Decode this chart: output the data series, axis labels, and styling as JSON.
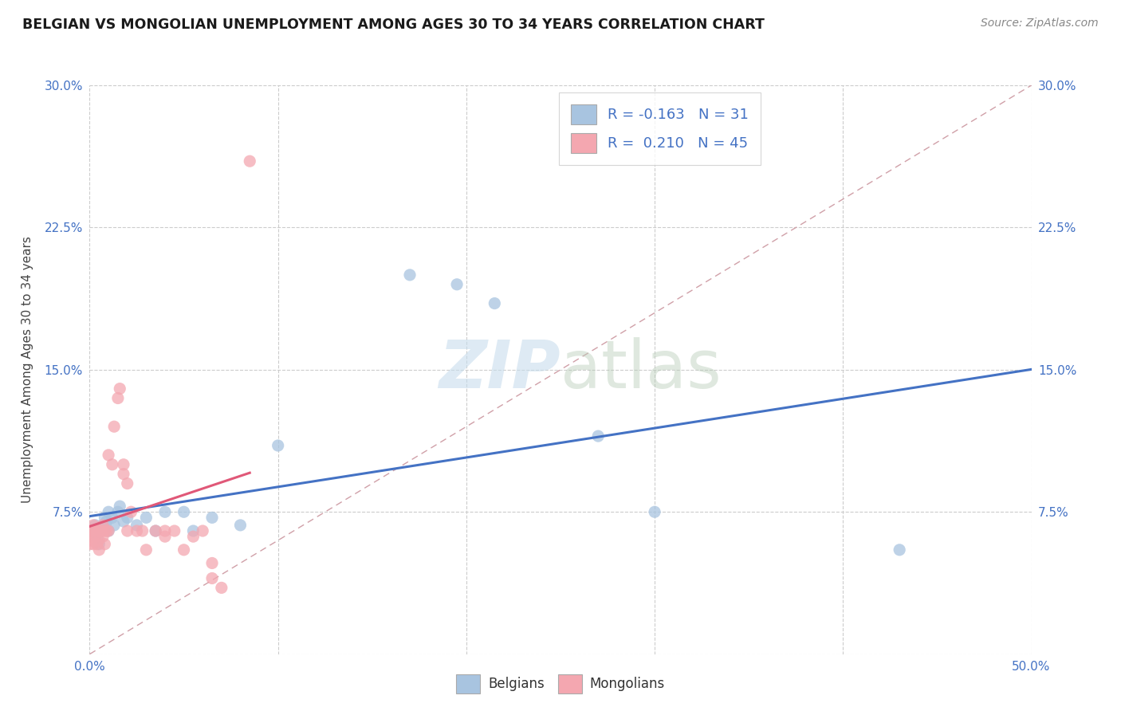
{
  "title": "BELGIAN VS MONGOLIAN UNEMPLOYMENT AMONG AGES 30 TO 34 YEARS CORRELATION CHART",
  "source": "Source: ZipAtlas.com",
  "ylabel": "Unemployment Among Ages 30 to 34 years",
  "xlim": [
    0.0,
    0.5
  ],
  "ylim": [
    0.0,
    0.3
  ],
  "xticks": [
    0.0,
    0.1,
    0.2,
    0.3,
    0.4,
    0.5
  ],
  "yticks": [
    0.0,
    0.075,
    0.15,
    0.225,
    0.3
  ],
  "xticklabels": [
    "0.0%",
    "",
    "",
    "",
    "",
    "50.0%"
  ],
  "yticklabels": [
    "",
    "7.5%",
    "15.0%",
    "22.5%",
    "30.0%"
  ],
  "belgian_color": "#a8c4e0",
  "mongolian_color": "#f4a7b0",
  "belgian_line_color": "#4472c4",
  "mongolian_line_color": "#e05878",
  "belgian_R": -0.163,
  "belgian_N": 31,
  "mongolian_R": 0.21,
  "mongolian_N": 45,
  "watermark_zip": "ZIP",
  "watermark_atlas": "atlas",
  "background_color": "#ffffff",
  "grid_color": "#cccccc",
  "tick_color": "#4472c4",
  "belgians_x": [
    0.003,
    0.003,
    0.004,
    0.005,
    0.006,
    0.007,
    0.008,
    0.009,
    0.01,
    0.01,
    0.012,
    0.013,
    0.015,
    0.016,
    0.018,
    0.02,
    0.025,
    0.03,
    0.035,
    0.04,
    0.05,
    0.055,
    0.065,
    0.08,
    0.1,
    0.17,
    0.195,
    0.215,
    0.27,
    0.3,
    0.43
  ],
  "belgians_y": [
    0.068,
    0.065,
    0.062,
    0.058,
    0.065,
    0.068,
    0.072,
    0.07,
    0.065,
    0.075,
    0.072,
    0.068,
    0.075,
    0.078,
    0.07,
    0.072,
    0.068,
    0.072,
    0.065,
    0.075,
    0.075,
    0.065,
    0.072,
    0.068,
    0.11,
    0.2,
    0.195,
    0.185,
    0.115,
    0.075,
    0.055
  ],
  "mongolians_x": [
    0.0,
    0.0,
    0.0,
    0.001,
    0.001,
    0.002,
    0.002,
    0.003,
    0.003,
    0.004,
    0.004,
    0.005,
    0.005,
    0.005,
    0.006,
    0.007,
    0.007,
    0.008,
    0.008,
    0.009,
    0.01,
    0.01,
    0.012,
    0.013,
    0.015,
    0.016,
    0.018,
    0.018,
    0.02,
    0.02,
    0.022,
    0.025,
    0.028,
    0.03,
    0.035,
    0.04,
    0.04,
    0.045,
    0.05,
    0.055,
    0.06,
    0.065,
    0.065,
    0.07,
    0.085
  ],
  "mongolians_y": [
    0.065,
    0.062,
    0.058,
    0.065,
    0.06,
    0.068,
    0.058,
    0.065,
    0.062,
    0.065,
    0.058,
    0.065,
    0.06,
    0.055,
    0.065,
    0.068,
    0.062,
    0.065,
    0.058,
    0.065,
    0.065,
    0.105,
    0.1,
    0.12,
    0.135,
    0.14,
    0.1,
    0.095,
    0.09,
    0.065,
    0.075,
    0.065,
    0.065,
    0.055,
    0.065,
    0.062,
    0.065,
    0.065,
    0.055,
    0.062,
    0.065,
    0.04,
    0.048,
    0.035,
    0.26
  ]
}
